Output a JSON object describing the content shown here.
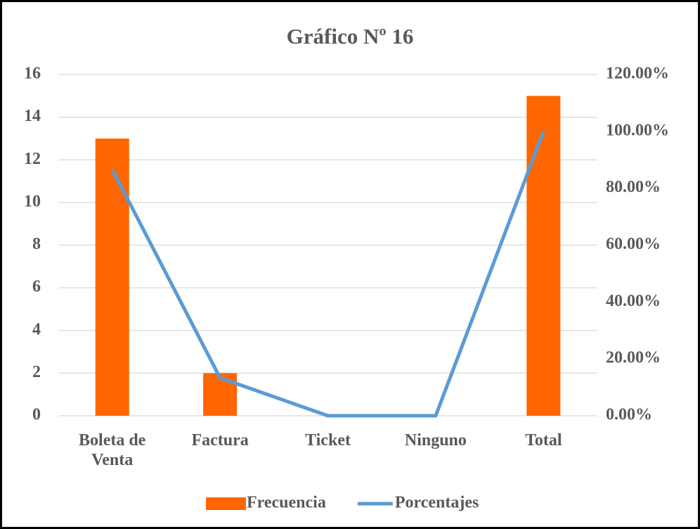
{
  "chart_data": {
    "type": "bar",
    "title": "Gráfico Nº 16",
    "categories": [
      "Boleta de Venta",
      "Factura",
      "Ticket",
      "Ninguno",
      "Total"
    ],
    "series": [
      {
        "name": "Frecuencia",
        "color": "#ff6600",
        "values": [
          13,
          2,
          0,
          0,
          15
        ]
      },
      {
        "name": "Porcentajes",
        "color": "#5b9bd5",
        "axis": "y2",
        "values": [
          86.67,
          13.33,
          0,
          0,
          100
        ]
      }
    ],
    "ylim": [
      0,
      16
    ],
    "yticks": [
      0,
      2,
      4,
      6,
      8,
      10,
      12,
      14,
      16
    ],
    "y2lim": [
      0,
      120
    ],
    "y2ticks": [
      {
        "value": 0,
        "label": "0.00%"
      },
      {
        "value": 20,
        "label": "20.00%"
      },
      {
        "value": 40,
        "label": "40.00%"
      },
      {
        "value": 60,
        "label": "60.00%"
      },
      {
        "value": 80,
        "label": "80.00%"
      },
      {
        "value": 100,
        "label": "100.00%"
      },
      {
        "value": 120,
        "label": "120.00%"
      }
    ],
    "grid": true,
    "legend": "bottom"
  }
}
